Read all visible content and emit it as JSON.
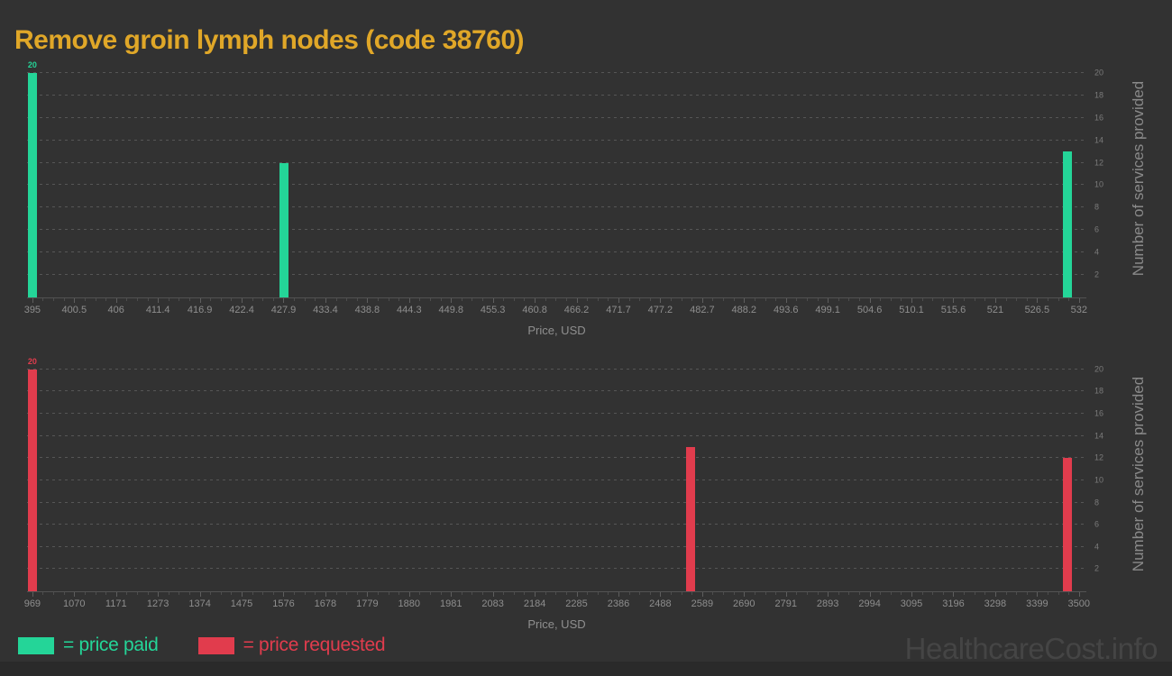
{
  "page": {
    "title": "Remove groin lymph nodes (code 38760)",
    "watermark": "HealthcareCost.info"
  },
  "colors": {
    "background": "#323232",
    "title": "#e0a728",
    "paid": "#24d598",
    "requested": "#e13c4d",
    "grid": "#565656"
  },
  "legend": {
    "paid_label": "= price paid",
    "requested_label": "= price requested"
  },
  "chart_data": [
    {
      "type": "bar",
      "series_name": "price paid",
      "color_key": "paid",
      "xlabel": "Price, USD",
      "ylabel": "Number of services provided",
      "xmin": 395,
      "xmax": 532,
      "ylim": [
        0,
        21.2
      ],
      "yticks": [
        2,
        4,
        6,
        8,
        10,
        12,
        14,
        16,
        18,
        20
      ],
      "xtick_labels": [
        "395",
        "400.5",
        "406",
        "411.4",
        "416.9",
        "422.4",
        "427.9",
        "433.4",
        "438.8",
        "444.3",
        "449.8",
        "455.3",
        "460.8",
        "466.2",
        "471.7",
        "477.2",
        "482.7",
        "488.2",
        "493.6",
        "499.1",
        "504.6",
        "510.1",
        "515.6",
        "521",
        "526.5",
        "532"
      ],
      "bars": [
        {
          "x": 395,
          "value": 20,
          "label": "20"
        },
        {
          "x": 427.9,
          "value": 12,
          "label": ""
        },
        {
          "x": 530.5,
          "value": 13,
          "label": ""
        }
      ],
      "grid": true,
      "legend_position": "none"
    },
    {
      "type": "bar",
      "series_name": "price requested",
      "color_key": "requested",
      "xlabel": "Price, USD",
      "ylabel": "Number of services provided",
      "xmin": 969,
      "xmax": 3500,
      "ylim": [
        0,
        21.2
      ],
      "yticks": [
        2,
        4,
        6,
        8,
        10,
        12,
        14,
        16,
        18,
        20
      ],
      "xtick_labels": [
        "969",
        "1070",
        "1171",
        "1273",
        "1374",
        "1475",
        "1576",
        "1678",
        "1779",
        "1880",
        "1981",
        "2083",
        "2184",
        "2285",
        "2386",
        "2488",
        "2589",
        "2690",
        "2791",
        "2893",
        "2994",
        "3095",
        "3196",
        "3298",
        "3399",
        "3500"
      ],
      "bars": [
        {
          "x": 969,
          "value": 20,
          "label": "20"
        },
        {
          "x": 2560,
          "value": 13,
          "label": ""
        },
        {
          "x": 3472,
          "value": 12,
          "label": ""
        }
      ],
      "grid": true,
      "legend_position": "none"
    }
  ]
}
